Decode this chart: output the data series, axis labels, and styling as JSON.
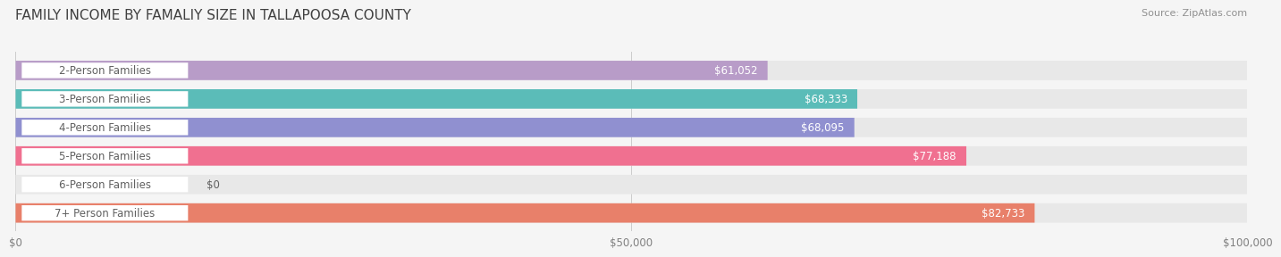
{
  "title": "FAMILY INCOME BY FAMALIY SIZE IN TALLAPOOSA COUNTY",
  "source": "Source: ZipAtlas.com",
  "categories": [
    "2-Person Families",
    "3-Person Families",
    "4-Person Families",
    "5-Person Families",
    "6-Person Families",
    "7+ Person Families"
  ],
  "values": [
    61052,
    68333,
    68095,
    77188,
    0,
    82733
  ],
  "bar_colors": [
    "#b89cc8",
    "#5bbcb8",
    "#9090d0",
    "#f07090",
    "#f5d0a8",
    "#e8806a"
  ],
  "bar_bg_color": "#e8e8e8",
  "label_bg_color": "#ffffff",
  "label_text_color": "#606060",
  "value_text_color": "#ffffff",
  "title_color": "#404040",
  "source_color": "#909090",
  "xlim": [
    0,
    100000
  ],
  "xtick_labels": [
    "$0",
    "$50,000",
    "$100,000"
  ],
  "xtick_values": [
    0,
    50000,
    100000
  ],
  "background_color": "#f5f5f5",
  "title_fontsize": 11,
  "source_fontsize": 8,
  "bar_label_fontsize": 8.5,
  "value_label_fontsize": 8.5,
  "tick_fontsize": 8.5
}
